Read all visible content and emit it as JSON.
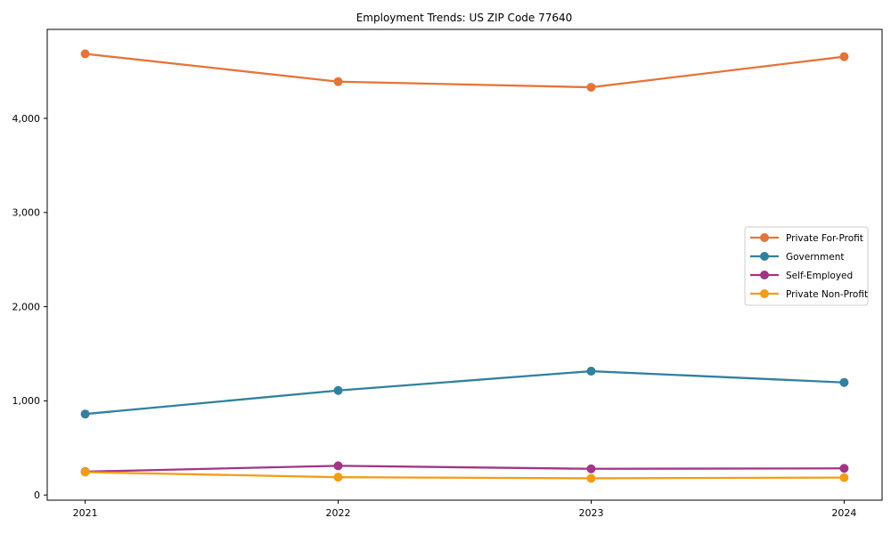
{
  "chart": {
    "title": "Employment Trends: US ZIP Code 77640"
  },
  "chart_data": {
    "type": "line",
    "title": "Employment Trends: US ZIP Code 77640",
    "categories": [
      2021,
      2022,
      2023,
      2024
    ],
    "series": [
      {
        "name": "Private For-Profit",
        "color": "#e57439",
        "values": [
          4685,
          4390,
          4330,
          4655
        ]
      },
      {
        "name": "Government",
        "color": "#31809f",
        "values": [
          860,
          1110,
          1315,
          1195
        ]
      },
      {
        "name": "Self-Employed",
        "color": "#a23585",
        "values": [
          248,
          310,
          278,
          283
        ]
      },
      {
        "name": "Private Non-Profit",
        "color": "#f39d17",
        "values": [
          243,
          189,
          177,
          185
        ]
      }
    ],
    "xlabel": "",
    "ylabel": "",
    "xlim": [
      2020.85,
      2024.15
    ],
    "ylim": [
      -55,
      4945
    ],
    "yticks": [
      0,
      1000,
      2000,
      3000,
      4000
    ],
    "ytick_labels": [
      "0",
      "1,000",
      "2,000",
      "3,000",
      "4,000"
    ],
    "xtick_labels": [
      "2021",
      "2022",
      "2023",
      "2024"
    ],
    "grid": false,
    "legend_position": "center right",
    "colors": {
      "spine": "#000000",
      "legend_border": "#cccccc",
      "legend_bg": "#ffffff"
    }
  }
}
